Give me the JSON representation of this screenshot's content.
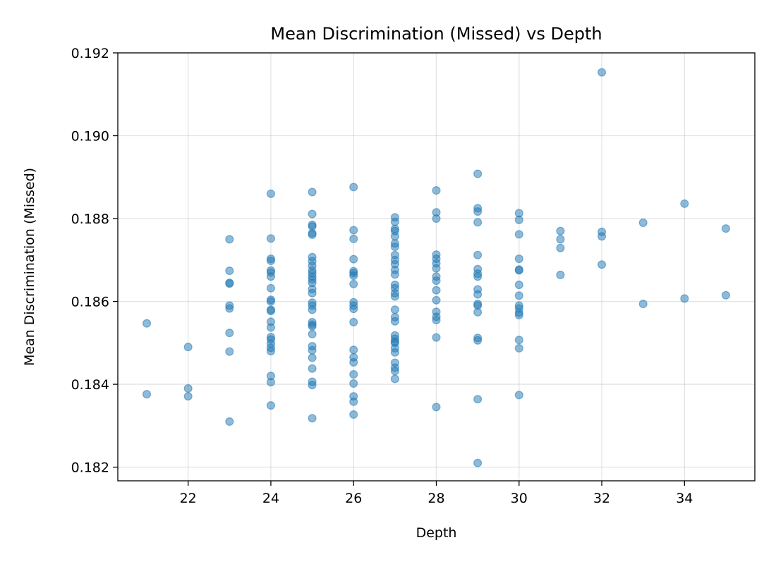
{
  "chart_data": {
    "type": "scatter",
    "title": "Mean Discrimination (Missed) vs Depth",
    "xlabel": "Depth",
    "ylabel": "Mean Discrimination (Missed)",
    "xlim": [
      20.3,
      35.7
    ],
    "ylim": [
      0.18167,
      0.192
    ],
    "xticks": [
      22,
      24,
      26,
      28,
      30,
      32,
      34
    ],
    "yticks": [
      0.182,
      0.184,
      0.186,
      0.188,
      0.19,
      0.192
    ],
    "ytick_labels": [
      "0.182",
      "0.184",
      "0.186",
      "0.188",
      "0.190",
      "0.192"
    ],
    "grid": true,
    "marker_color": "#1f77b4",
    "marker_opacity": 0.5,
    "series": [
      {
        "points": [
          [
            21,
            0.18547
          ],
          [
            21,
            0.18376
          ],
          [
            22,
            0.1849
          ],
          [
            22,
            0.1839
          ],
          [
            22,
            0.18371
          ],
          [
            23,
            0.1875
          ],
          [
            23,
            0.18674
          ],
          [
            23,
            0.18645
          ],
          [
            23,
            0.18643
          ],
          [
            23,
            0.1859
          ],
          [
            23,
            0.18583
          ],
          [
            23,
            0.18524
          ],
          [
            23,
            0.18479
          ],
          [
            23,
            0.1831
          ],
          [
            24,
            0.1886
          ],
          [
            24,
            0.18752
          ],
          [
            24,
            0.18703
          ],
          [
            24,
            0.18698
          ],
          [
            24,
            0.18675
          ],
          [
            24,
            0.1867
          ],
          [
            24,
            0.1866
          ],
          [
            24,
            0.18632
          ],
          [
            24,
            0.18604
          ],
          [
            24,
            0.186
          ],
          [
            24,
            0.1858
          ],
          [
            24,
            0.18577
          ],
          [
            24,
            0.18551
          ],
          [
            24,
            0.18537
          ],
          [
            24,
            0.18514
          ],
          [
            24,
            0.18508
          ],
          [
            24,
            0.18498
          ],
          [
            24,
            0.18488
          ],
          [
            24,
            0.1848
          ],
          [
            24,
            0.1842
          ],
          [
            24,
            0.18405
          ],
          [
            24,
            0.18349
          ],
          [
            25,
            0.18864
          ],
          [
            25,
            0.18811
          ],
          [
            25,
            0.18785
          ],
          [
            25,
            0.18781
          ],
          [
            25,
            0.18765
          ],
          [
            25,
            0.18761
          ],
          [
            25,
            0.18707
          ],
          [
            25,
            0.18697
          ],
          [
            25,
            0.18686
          ],
          [
            25,
            0.18675
          ],
          [
            25,
            0.18668
          ],
          [
            25,
            0.1866
          ],
          [
            25,
            0.18653
          ],
          [
            25,
            0.18645
          ],
          [
            25,
            0.1863
          ],
          [
            25,
            0.1862
          ],
          [
            25,
            0.18597
          ],
          [
            25,
            0.1859
          ],
          [
            25,
            0.1858
          ],
          [
            25,
            0.1855
          ],
          [
            25,
            0.18544
          ],
          [
            25,
            0.1854
          ],
          [
            25,
            0.18521
          ],
          [
            25,
            0.18492
          ],
          [
            25,
            0.18482
          ],
          [
            25,
            0.18464
          ],
          [
            25,
            0.18438
          ],
          [
            25,
            0.18406
          ],
          [
            25,
            0.18398
          ],
          [
            25,
            0.18318
          ],
          [
            26,
            0.18876
          ],
          [
            26,
            0.18772
          ],
          [
            26,
            0.18751
          ],
          [
            26,
            0.18702
          ],
          [
            26,
            0.18673
          ],
          [
            26,
            0.18668
          ],
          [
            26,
            0.18662
          ],
          [
            26,
            0.18642
          ],
          [
            26,
            0.18598
          ],
          [
            26,
            0.1859
          ],
          [
            26,
            0.18582
          ],
          [
            26,
            0.1855
          ],
          [
            26,
            0.18483
          ],
          [
            26,
            0.18465
          ],
          [
            26,
            0.18453
          ],
          [
            26,
            0.18424
          ],
          [
            26,
            0.18402
          ],
          [
            26,
            0.18371
          ],
          [
            26,
            0.18358
          ],
          [
            26,
            0.18327
          ],
          [
            27,
            0.18803
          ],
          [
            27,
            0.18792
          ],
          [
            27,
            0.18775
          ],
          [
            27,
            0.1877
          ],
          [
            27,
            0.18757
          ],
          [
            27,
            0.1874
          ],
          [
            27,
            0.18732
          ],
          [
            27,
            0.18712
          ],
          [
            27,
            0.187
          ],
          [
            27,
            0.1869
          ],
          [
            27,
            0.18676
          ],
          [
            27,
            0.18665
          ],
          [
            27,
            0.1864
          ],
          [
            27,
            0.18632
          ],
          [
            27,
            0.1862
          ],
          [
            27,
            0.18612
          ],
          [
            27,
            0.1858
          ],
          [
            27,
            0.18562
          ],
          [
            27,
            0.18552
          ],
          [
            27,
            0.18518
          ],
          [
            27,
            0.1851
          ],
          [
            27,
            0.18503
          ],
          [
            27,
            0.185
          ],
          [
            27,
            0.18487
          ],
          [
            27,
            0.18477
          ],
          [
            27,
            0.18452
          ],
          [
            27,
            0.1844
          ],
          [
            27,
            0.18432
          ],
          [
            27,
            0.18413
          ],
          [
            28,
            0.18868
          ],
          [
            28,
            0.18815
          ],
          [
            28,
            0.188
          ],
          [
            28,
            0.18713
          ],
          [
            28,
            0.18703
          ],
          [
            28,
            0.18692
          ],
          [
            28,
            0.1868
          ],
          [
            28,
            0.1866
          ],
          [
            28,
            0.1865
          ],
          [
            28,
            0.18627
          ],
          [
            28,
            0.18603
          ],
          [
            28,
            0.18575
          ],
          [
            28,
            0.18563
          ],
          [
            28,
            0.18555
          ],
          [
            28,
            0.18513
          ],
          [
            28,
            0.18345
          ],
          [
            29,
            0.18908
          ],
          [
            29,
            0.18825
          ],
          [
            29,
            0.18817
          ],
          [
            29,
            0.18791
          ],
          [
            29,
            0.18712
          ],
          [
            29,
            0.18678
          ],
          [
            29,
            0.18667
          ],
          [
            29,
            0.1866
          ],
          [
            29,
            0.18629
          ],
          [
            29,
            0.18617
          ],
          [
            29,
            0.18594
          ],
          [
            29,
            0.1859
          ],
          [
            29,
            0.18574
          ],
          [
            29,
            0.18512
          ],
          [
            29,
            0.18506
          ],
          [
            29,
            0.18364
          ],
          [
            29,
            0.1821
          ],
          [
            30,
            0.18813
          ],
          [
            30,
            0.18797
          ],
          [
            30,
            0.18762
          ],
          [
            30,
            0.18703
          ],
          [
            30,
            0.18677
          ],
          [
            30,
            0.18675
          ],
          [
            30,
            0.1864
          ],
          [
            30,
            0.18614
          ],
          [
            30,
            0.1859
          ],
          [
            30,
            0.18583
          ],
          [
            30,
            0.18573
          ],
          [
            30,
            0.18567
          ],
          [
            30,
            0.18507
          ],
          [
            30,
            0.18487
          ],
          [
            30,
            0.18374
          ],
          [
            31,
            0.1877
          ],
          [
            31,
            0.1875
          ],
          [
            31,
            0.18729
          ],
          [
            31,
            0.18664
          ],
          [
            32,
            0.19153
          ],
          [
            32,
            0.18768
          ],
          [
            32,
            0.18757
          ],
          [
            32,
            0.18689
          ],
          [
            33,
            0.1879
          ],
          [
            33,
            0.18594
          ],
          [
            34,
            0.18836
          ],
          [
            34,
            0.18607
          ],
          [
            35,
            0.18776
          ],
          [
            35,
            0.18615
          ]
        ]
      }
    ]
  }
}
